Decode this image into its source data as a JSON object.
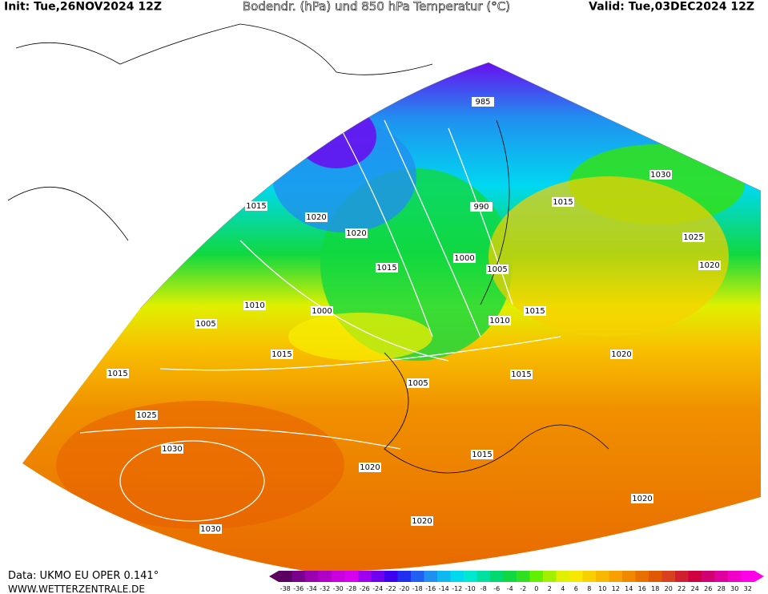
{
  "header": {
    "init": "Init: Tue,26NOV2024 12Z",
    "title": "Bodendr. (hPa) und 850 hPa Temperatur (°C)",
    "valid": "Valid: Tue,03DEC2024 12Z"
  },
  "footer": {
    "source": "Data: UKMO EU OPER 0.141°",
    "website": "WWW.WETTERZENTRALE.DE"
  },
  "colorbar": {
    "ticks": [
      -38,
      -36,
      -34,
      -32,
      -30,
      -28,
      -26,
      -24,
      -22,
      -20,
      -18,
      -16,
      -14,
      -12,
      -10,
      -8,
      -6,
      -4,
      -2,
      0,
      2,
      4,
      6,
      8,
      10,
      12,
      14,
      16,
      18,
      20,
      22,
      24,
      26,
      28,
      30,
      32
    ],
    "colors": [
      "#5a0060",
      "#7a0090",
      "#9a00b0",
      "#b000c8",
      "#c800e0",
      "#d800f0",
      "#a000f0",
      "#7000f0",
      "#4000f0",
      "#2030f0",
      "#2060f0",
      "#2090f0",
      "#10b8f0",
      "#00d8f0",
      "#00e8d0",
      "#00e0a0",
      "#00d870",
      "#10d840",
      "#30e020",
      "#60f000",
      "#a0f000",
      "#e0f000",
      "#f8e800",
      "#f8d000",
      "#f8b800",
      "#f8a000",
      "#f08800",
      "#e87000",
      "#e05800",
      "#d84020",
      "#d02030",
      "#d00040",
      "#d00070",
      "#e000a0",
      "#f000c8",
      "#ff00e8"
    ]
  },
  "isobar_labels": [
    "985",
    "1030",
    "1015",
    "1020",
    "990",
    "1015",
    "1020",
    "1025",
    "1000",
    "1015",
    "1005",
    "1020",
    "1010",
    "1000",
    "1015",
    "1010",
    "1005",
    "1015",
    "1020",
    "1015",
    "1005",
    "1015",
    "1025",
    "1030",
    "1020",
    "1015",
    "1020",
    "1020",
    "1030"
  ]
}
